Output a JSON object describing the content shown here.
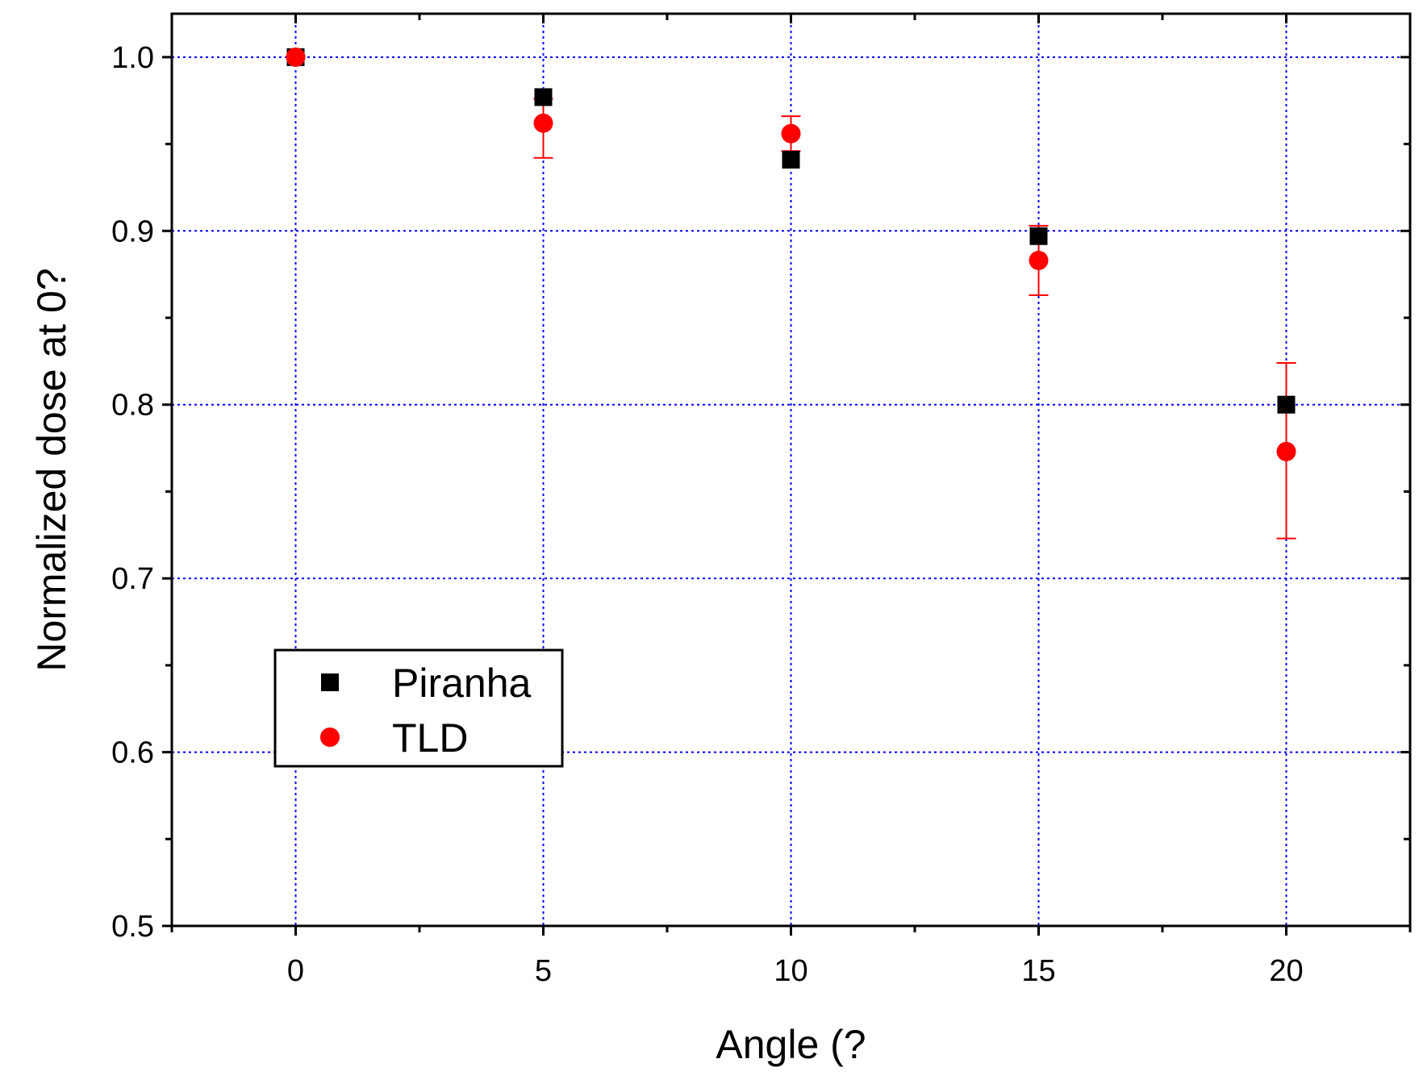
{
  "chart_data": {
    "type": "scatter",
    "title": "",
    "xlabel": "Angle (?",
    "ylabel": "Normalized dose at 0?",
    "xlim": [
      -2.5,
      22.5
    ],
    "ylim": [
      0.5,
      1.025
    ],
    "x_ticks": [
      "0",
      "5",
      "10",
      "15",
      "20"
    ],
    "y_ticks": [
      "0.5",
      "0.6",
      "0.7",
      "0.8",
      "0.9",
      "1.0"
    ],
    "grid": true,
    "legend_position": "lower-left",
    "series": [
      {
        "name": "Piranha",
        "marker": "square",
        "color": "#000000",
        "x": [
          0,
          5,
          10,
          15,
          20
        ],
        "y": [
          1.0,
          0.977,
          0.941,
          0.897,
          0.8
        ],
        "err_low": [
          0,
          0,
          0,
          0,
          0
        ],
        "err_high": [
          0,
          0,
          0,
          0,
          0
        ]
      },
      {
        "name": "TLD",
        "marker": "circle",
        "color": "#ff0000",
        "x": [
          0,
          5,
          10,
          15,
          20
        ],
        "y": [
          1.0,
          0.962,
          0.956,
          0.883,
          0.773
        ],
        "err_low": [
          0,
          0.942,
          0.946,
          0.863,
          0.723
        ],
        "err_high": [
          0,
          0.976,
          0.966,
          0.903,
          0.824
        ]
      }
    ]
  },
  "colors": {
    "grid": "#0000ff",
    "axis": "#000000"
  }
}
